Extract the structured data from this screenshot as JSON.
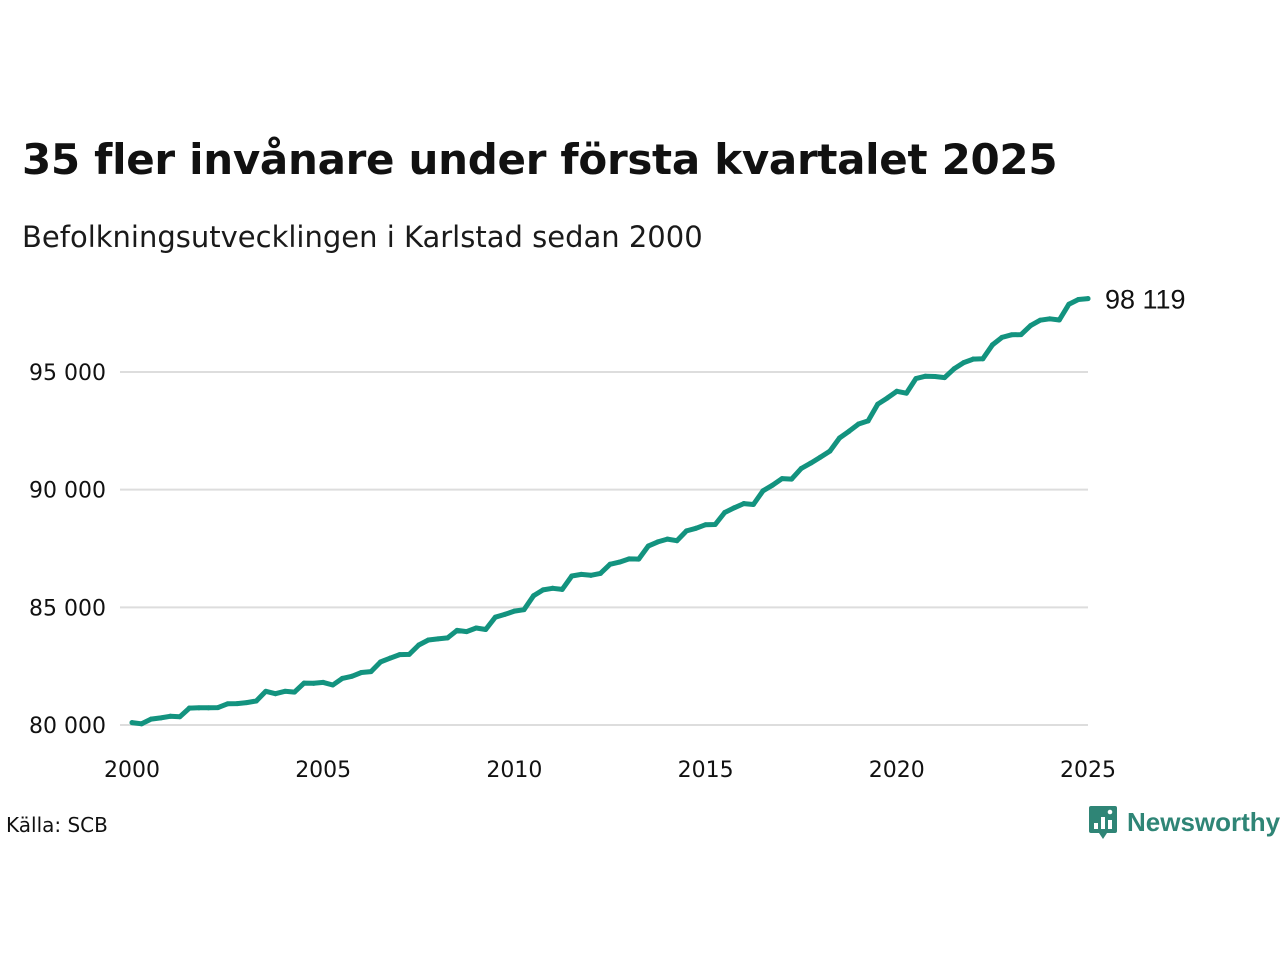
{
  "colors": {
    "line": "#13937f",
    "grid": "#dddddd",
    "text": "#111111",
    "brand": "#2f8576"
  },
  "source": "Källa: SCB",
  "brand": {
    "name": "Newsworthy",
    "icon": "newsworthy-logo-icon"
  },
  "chart_data": {
    "type": "line",
    "title": "35 fler invånare under första kvartalet 2025",
    "subtitle": "Befolkningsutvecklingen i Karlstad sedan 2000",
    "xlabel": "",
    "ylabel": "",
    "xlim": [
      2000,
      2025
    ],
    "ylim": [
      80000,
      98500
    ],
    "x_ticks": [
      2000,
      2005,
      2010,
      2015,
      2020,
      2025
    ],
    "x_tick_labels": [
      "2000",
      "2005",
      "2010",
      "2015",
      "2020",
      "2025"
    ],
    "y_ticks": [
      80000,
      85000,
      90000,
      95000
    ],
    "y_tick_labels": [
      "80 000",
      "85 000",
      "90 000",
      "95 000"
    ],
    "grid": "horizontal",
    "legend": "none",
    "end_label": "98 119",
    "series": [
      {
        "x": [
          2000.0,
          2000.25,
          2000.5,
          2000.75,
          2001.0,
          2001.25,
          2001.5,
          2001.75,
          2002.0,
          2002.25,
          2002.5,
          2002.75,
          2003.0,
          2003.25,
          2003.5,
          2003.75,
          2004.0,
          2004.25,
          2004.5,
          2004.75,
          2005.0,
          2005.25,
          2005.5,
          2005.75,
          2006.0,
          2006.25,
          2006.5,
          2006.75,
          2007.0,
          2007.25,
          2007.5,
          2007.75,
          2008.0,
          2008.25,
          2008.5,
          2008.75,
          2009.0,
          2009.25,
          2009.5,
          2009.75,
          2010.0,
          2010.25,
          2010.5,
          2010.75,
          2011.0,
          2011.25,
          2011.5,
          2011.75,
          2012.0,
          2012.25,
          2012.5,
          2012.75,
          2013.0,
          2013.25,
          2013.5,
          2013.75,
          2014.0,
          2014.25,
          2014.5,
          2014.75,
          2015.0,
          2015.25,
          2015.5,
          2015.75,
          2016.0,
          2016.25,
          2016.5,
          2016.75,
          2017.0,
          2017.25,
          2017.5,
          2017.75,
          2018.0,
          2018.25,
          2018.5,
          2018.75,
          2019.0,
          2019.25,
          2019.5,
          2019.75,
          2020.0,
          2020.25,
          2020.5,
          2020.75,
          2021.0,
          2021.25,
          2021.5,
          2021.75,
          2022.0,
          2022.25,
          2022.5,
          2022.75,
          2023.0,
          2023.25,
          2023.5,
          2023.75,
          2024.0,
          2024.25,
          2024.5,
          2024.75,
          2025.0
        ],
        "values": [
          80100,
          80050,
          80250,
          80300,
          80370,
          80350,
          80720,
          80730,
          80730,
          80740,
          80900,
          80910,
          80950,
          81020,
          81430,
          81330,
          81430,
          81400,
          81780,
          81770,
          81810,
          81700,
          81980,
          82070,
          82230,
          82270,
          82680,
          82840,
          82990,
          83000,
          83400,
          83610,
          83660,
          83700,
          84020,
          83970,
          84120,
          84060,
          84580,
          84700,
          84840,
          84900,
          85490,
          85740,
          85810,
          85760,
          86330,
          86400,
          86360,
          86440,
          86830,
          86920,
          87060,
          87050,
          87600,
          87780,
          87900,
          87830,
          88250,
          88360,
          88510,
          88520,
          89030,
          89230,
          89410,
          89370,
          89950,
          90190,
          90470,
          90450,
          90900,
          91130,
          91380,
          91640,
          92190,
          92480,
          92790,
          92920,
          93630,
          93890,
          94180,
          94100,
          94720,
          94820,
          94810,
          94760,
          95140,
          95400,
          95550,
          95560,
          96150,
          96470,
          96580,
          96590,
          96970,
          97200,
          97260,
          97210,
          97880,
          98080,
          98119
        ]
      }
    ]
  }
}
